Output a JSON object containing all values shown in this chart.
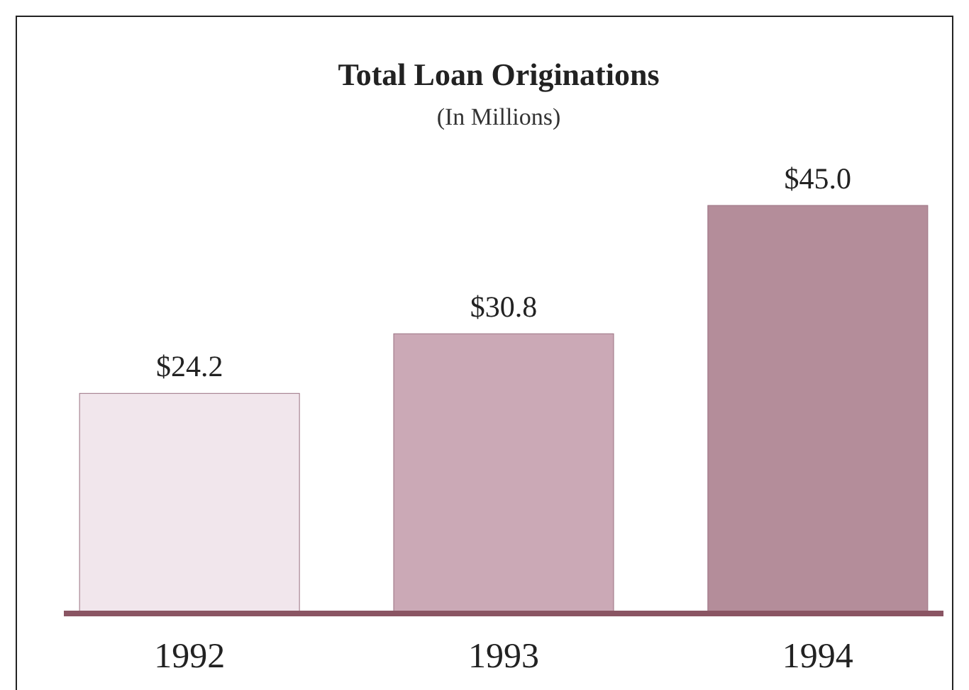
{
  "chart_data": {
    "type": "bar",
    "title": "Total Loan Originations",
    "subtitle": "(In Millions)",
    "categories": [
      "1992",
      "1993",
      "1994"
    ],
    "values": [
      24.2,
      30.8,
      45.0
    ],
    "colors": [
      "#f1e6ec",
      "#cba9b6",
      "#b48d9a"
    ],
    "value_labels": [
      "$24.2",
      "$30.8",
      "$45.0"
    ]
  }
}
